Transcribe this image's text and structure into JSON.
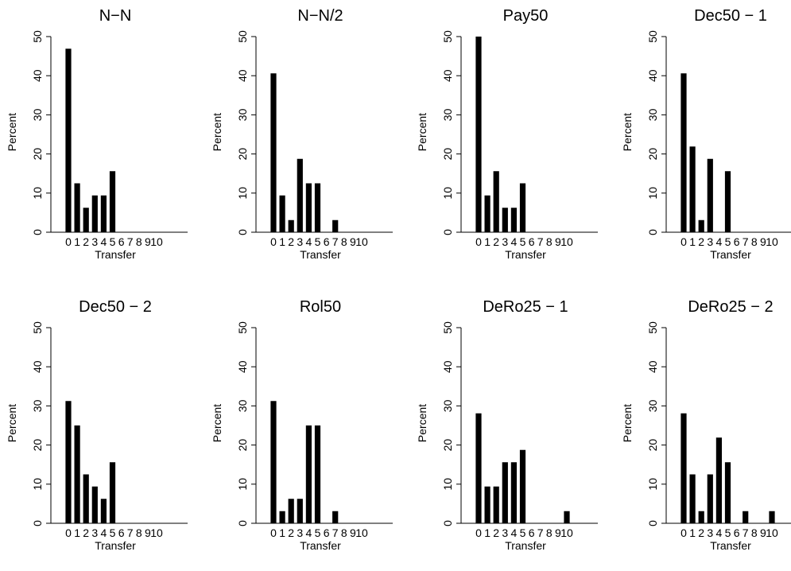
{
  "chart_data": [
    {
      "type": "bar",
      "title": "N−N",
      "xlabel": "Transfer",
      "ylabel": "Percent",
      "categories": [
        "0",
        "1",
        "2",
        "3",
        "4",
        "5",
        "6",
        "7",
        "8",
        "9",
        "10"
      ],
      "values": [
        46.9,
        12.5,
        6.25,
        9.4,
        9.4,
        15.6,
        0,
        0,
        0,
        0,
        0
      ],
      "ylim": [
        0,
        52
      ],
      "yticks": [
        0,
        10,
        20,
        30,
        40,
        50
      ],
      "grid": false
    },
    {
      "type": "bar",
      "title": "N−N/2",
      "xlabel": "Transfer",
      "ylabel": "Percent",
      "categories": [
        "0",
        "1",
        "2",
        "3",
        "4",
        "5",
        "6",
        "7",
        "8",
        "9",
        "10"
      ],
      "values": [
        40.6,
        9.4,
        3.1,
        18.75,
        12.5,
        12.5,
        0,
        3.1,
        0,
        0,
        0
      ],
      "ylim": [
        0,
        52
      ],
      "yticks": [
        0,
        10,
        20,
        30,
        40,
        50
      ],
      "grid": false
    },
    {
      "type": "bar",
      "title": "Pay50",
      "xlabel": "Transfer",
      "ylabel": "Percent",
      "categories": [
        "0",
        "1",
        "2",
        "3",
        "4",
        "5",
        "6",
        "7",
        "8",
        "9",
        "10"
      ],
      "values": [
        50,
        9.4,
        15.6,
        6.25,
        6.25,
        12.5,
        0,
        0,
        0,
        0,
        0
      ],
      "ylim": [
        0,
        52
      ],
      "yticks": [
        0,
        10,
        20,
        30,
        40,
        50
      ],
      "grid": false
    },
    {
      "type": "bar",
      "title": "Dec50 − 1",
      "xlabel": "Transfer",
      "ylabel": "Percent",
      "categories": [
        "0",
        "1",
        "2",
        "3",
        "4",
        "5",
        "6",
        "7",
        "8",
        "9",
        "10"
      ],
      "values": [
        40.6,
        21.9,
        3.1,
        18.75,
        0,
        15.6,
        0,
        0,
        0,
        0,
        0
      ],
      "ylim": [
        0,
        52
      ],
      "yticks": [
        0,
        10,
        20,
        30,
        40,
        50
      ],
      "grid": false
    },
    {
      "type": "bar",
      "title": "Dec50 − 2",
      "xlabel": "Transfer",
      "ylabel": "Percent",
      "categories": [
        "0",
        "1",
        "2",
        "3",
        "4",
        "5",
        "6",
        "7",
        "8",
        "9",
        "10"
      ],
      "values": [
        31.25,
        25,
        12.5,
        9.4,
        6.25,
        15.6,
        0,
        0,
        0,
        0,
        0
      ],
      "ylim": [
        0,
        52
      ],
      "yticks": [
        0,
        10,
        20,
        30,
        40,
        50
      ],
      "grid": false
    },
    {
      "type": "bar",
      "title": "Rol50",
      "xlabel": "Transfer",
      "ylabel": "Percent",
      "categories": [
        "0",
        "1",
        "2",
        "3",
        "4",
        "5",
        "6",
        "7",
        "8",
        "9",
        "10"
      ],
      "values": [
        31.25,
        3.1,
        6.25,
        6.25,
        25,
        25,
        0,
        3.1,
        0,
        0,
        0
      ],
      "ylim": [
        0,
        52
      ],
      "yticks": [
        0,
        10,
        20,
        30,
        40,
        50
      ],
      "grid": false
    },
    {
      "type": "bar",
      "title": "DeRo25 − 1",
      "xlabel": "Transfer",
      "ylabel": "Percent",
      "categories": [
        "0",
        "1",
        "2",
        "3",
        "4",
        "5",
        "6",
        "7",
        "8",
        "9",
        "10"
      ],
      "values": [
        28.1,
        9.4,
        9.4,
        15.6,
        15.6,
        18.75,
        0,
        0,
        0,
        0,
        3.1
      ],
      "ylim": [
        0,
        52
      ],
      "yticks": [
        0,
        10,
        20,
        30,
        40,
        50
      ],
      "grid": false
    },
    {
      "type": "bar",
      "title": "DeRo25 − 2",
      "xlabel": "Transfer",
      "ylabel": "Percent",
      "categories": [
        "0",
        "1",
        "2",
        "3",
        "4",
        "5",
        "6",
        "7",
        "8",
        "9",
        "10"
      ],
      "values": [
        28.1,
        12.5,
        3.1,
        12.5,
        21.9,
        15.6,
        0,
        3.1,
        0,
        0,
        3.1
      ],
      "ylim": [
        0,
        52
      ],
      "yticks": [
        0,
        10,
        20,
        30,
        40,
        50
      ],
      "grid": false
    }
  ]
}
